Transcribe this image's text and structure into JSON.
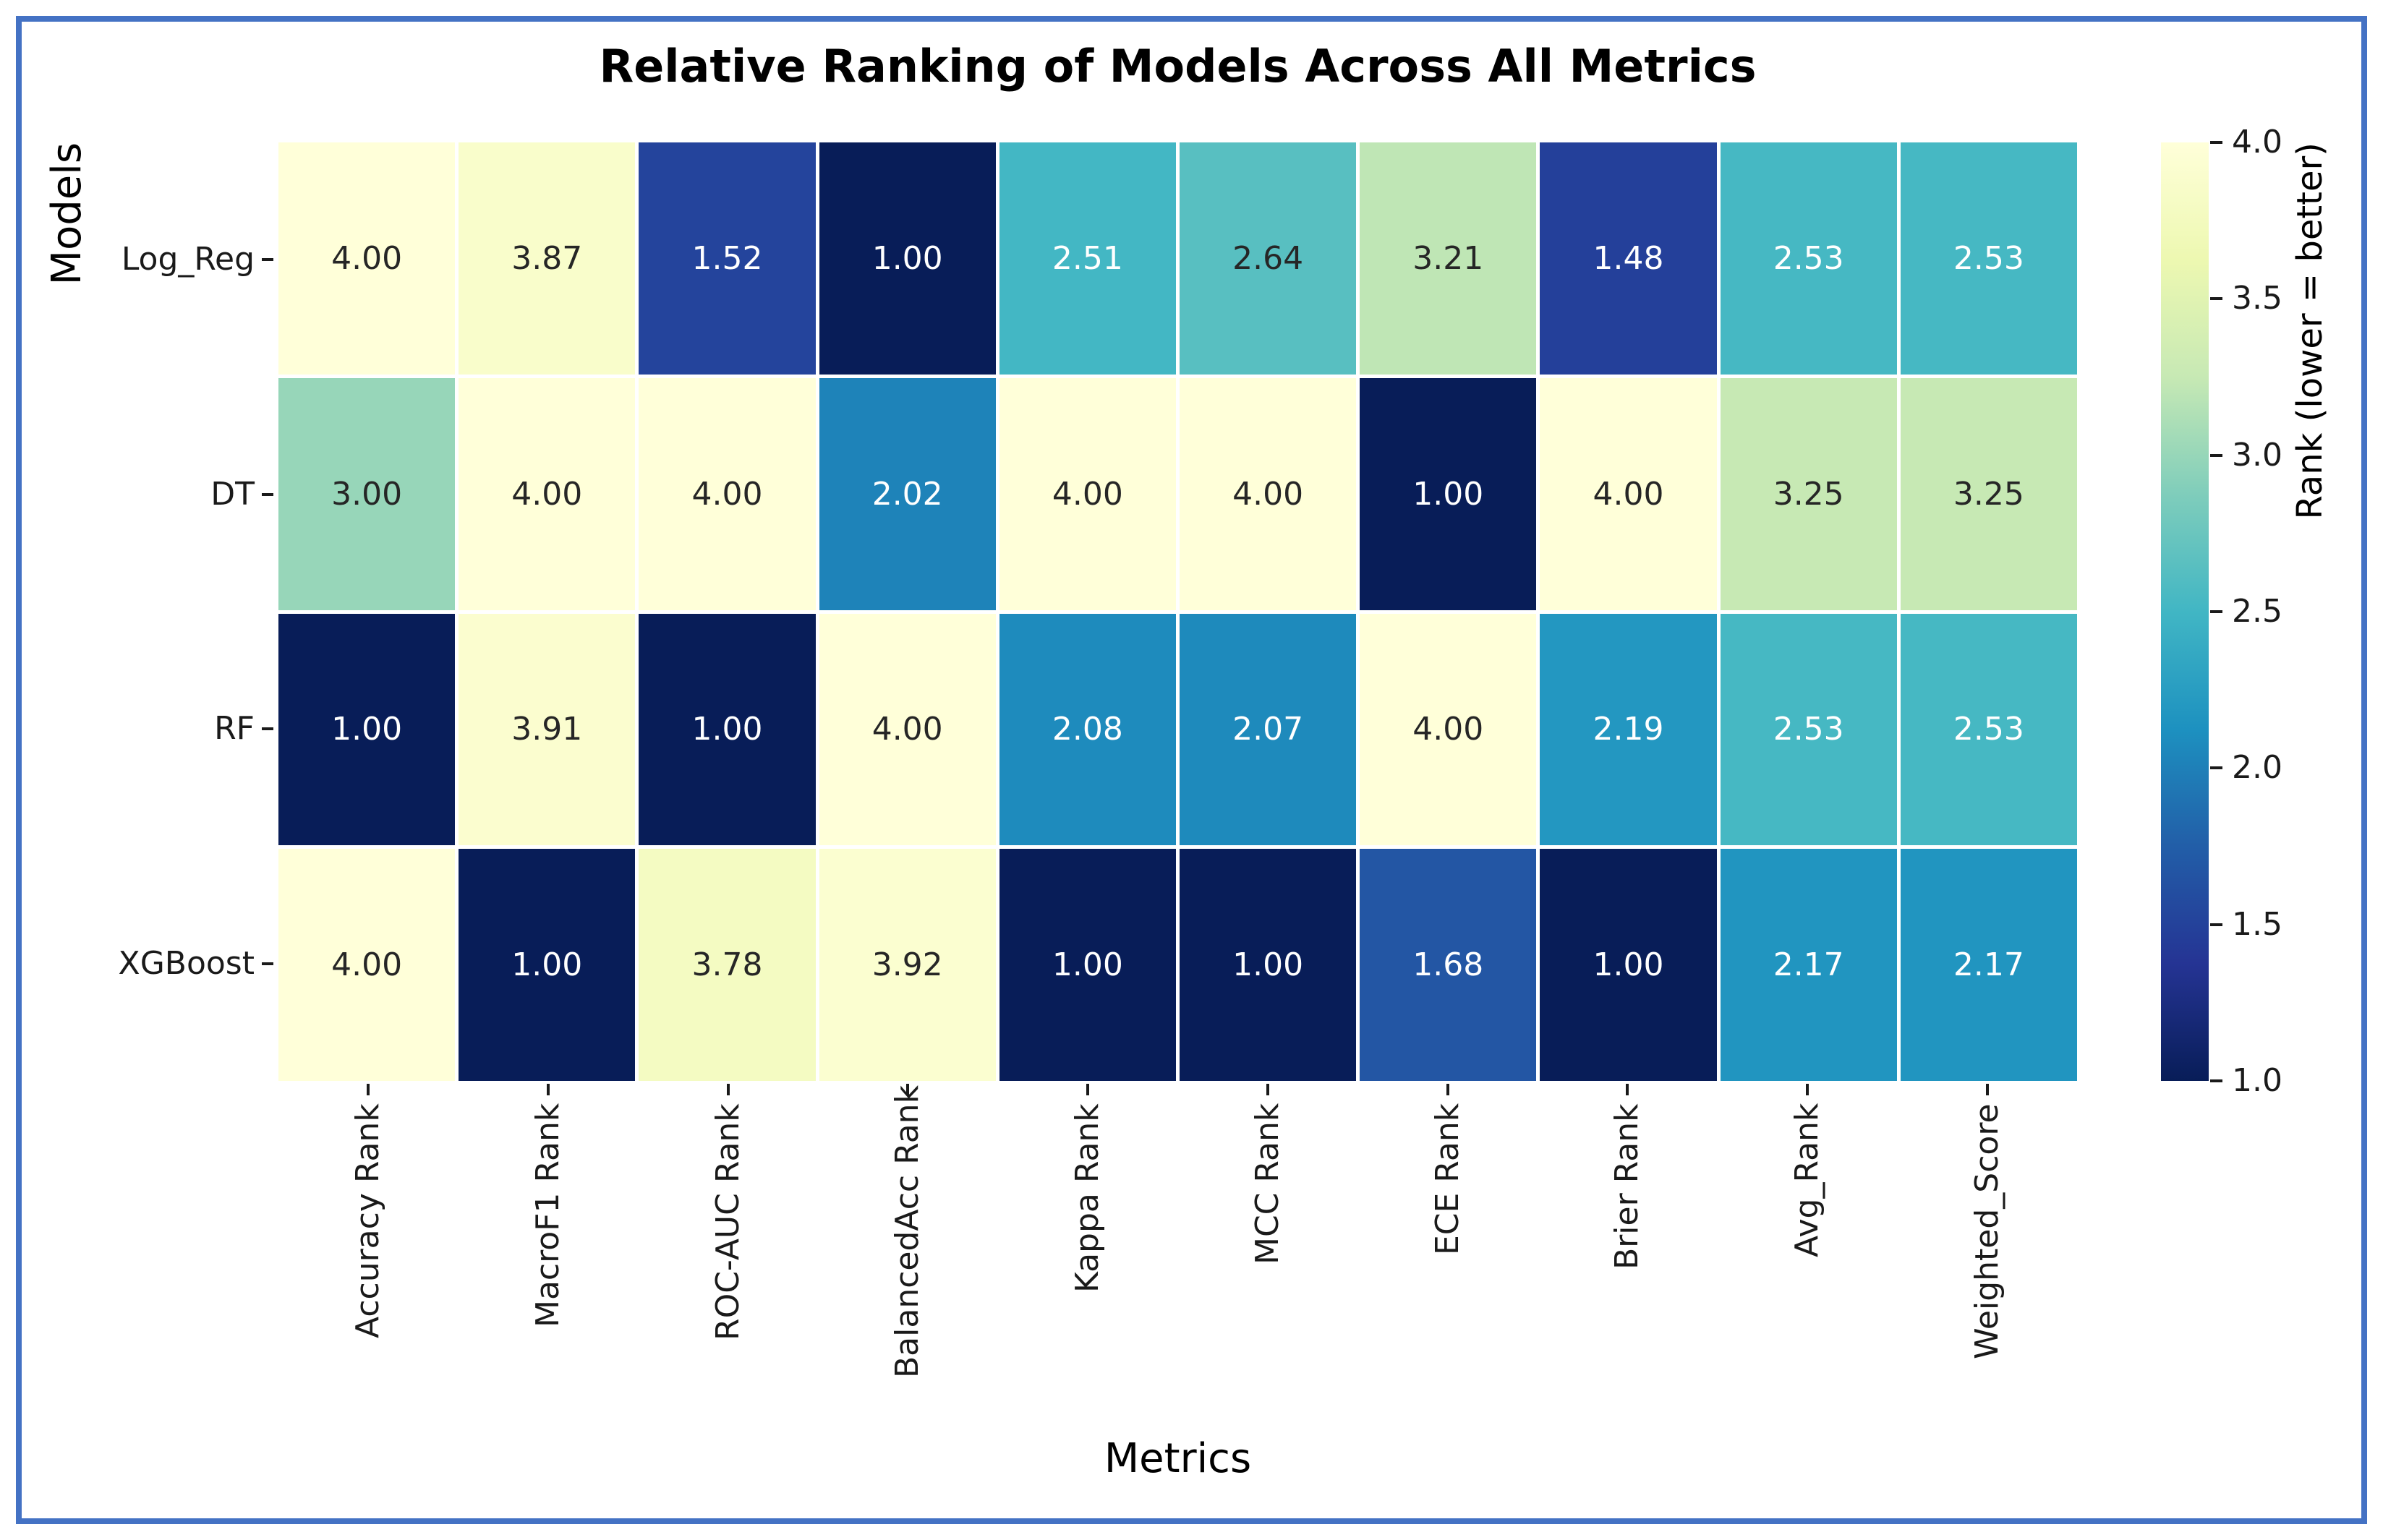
{
  "chart_data": {
    "type": "heatmap",
    "title": "Relative Ranking of Models Across All Metrics",
    "xlabel": "Metrics",
    "ylabel": "Models",
    "rows": [
      "Log_Reg",
      "DT",
      "RF",
      "XGBoost"
    ],
    "columns": [
      "Accuracy Rank",
      "MacroF1 Rank",
      "ROC-AUC Rank",
      "BalancedAcc Rank",
      "Kappa Rank",
      "MCC Rank",
      "ECE Rank",
      "Brier Rank",
      "Avg_Rank",
      "Weighted_Score"
    ],
    "values": [
      [
        4.0,
        3.87,
        1.52,
        1.0,
        2.51,
        2.64,
        3.21,
        1.48,
        2.53,
        2.53
      ],
      [
        3.0,
        4.0,
        4.0,
        2.02,
        4.0,
        4.0,
        1.0,
        4.0,
        3.25,
        3.25
      ],
      [
        1.0,
        3.91,
        1.0,
        4.0,
        2.08,
        2.07,
        4.0,
        2.19,
        2.53,
        2.53
      ],
      [
        4.0,
        1.0,
        3.78,
        3.92,
        1.0,
        1.0,
        1.68,
        1.0,
        2.17,
        2.17
      ]
    ],
    "vmin": 1.0,
    "vmax": 4.0,
    "annotation_decimals": 2,
    "colormap": "YlGnBu (1.0 = dark navy, 4.0 = pale yellow)",
    "legend_position": "right-colorbar",
    "grid": false
  },
  "colorbar": {
    "label": "Rank (lower = better)",
    "tick_labels": [
      "4.0",
      "3.5",
      "3.0",
      "2.5",
      "2.0",
      "1.5",
      "1.0"
    ],
    "tick_values": [
      4.0,
      3.5,
      3.0,
      2.5,
      2.0,
      1.5,
      1.0
    ]
  },
  "colors": {
    "frame_border": "#4472c4",
    "background": "#ffffff",
    "colormap_stops": [
      "#ffffd9",
      "#edf8b1",
      "#c7e9b4",
      "#7fcdbb",
      "#41b6c4",
      "#1d91c0",
      "#225ea8",
      "#253494",
      "#081d58"
    ],
    "annotation_dark": "#262626",
    "annotation_light": "#ffffff",
    "axis_text": "#1a1a1a"
  }
}
